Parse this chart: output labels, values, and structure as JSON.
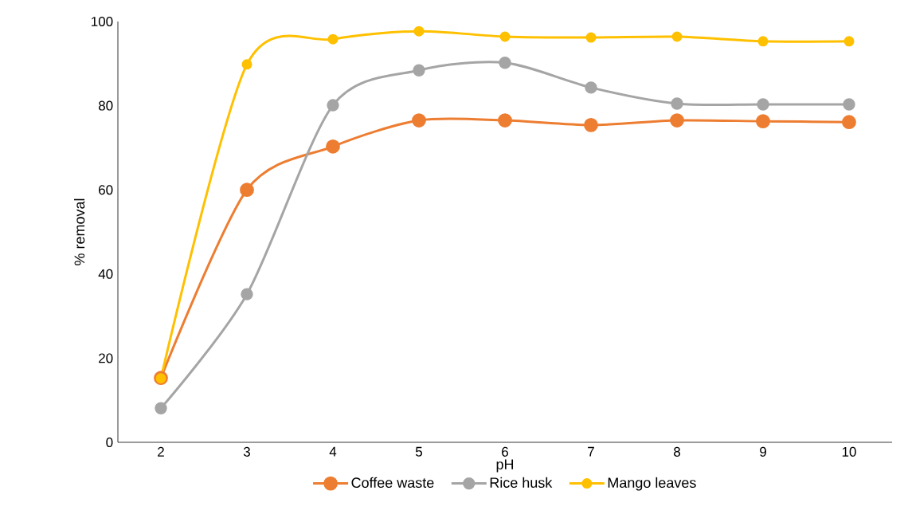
{
  "chart_data": {
    "type": "line",
    "xlabel": "pH",
    "ylabel": "% removal",
    "x": [
      2,
      3,
      4,
      5,
      6,
      7,
      8,
      9,
      10
    ],
    "series": [
      {
        "name": "Coffee waste",
        "color": "#ed7d31",
        "values": [
          15.3,
          60.0,
          70.3,
          76.5,
          76.5,
          75.4,
          76.5,
          76.3,
          76.1
        ]
      },
      {
        "name": "Rice husk",
        "color": "#a5a5a5",
        "values": [
          8.1,
          35.2,
          80.1,
          88.4,
          90.2,
          84.3,
          80.5,
          80.3,
          80.3
        ]
      },
      {
        "name": "Mango leaves",
        "color": "#ffc000",
        "values": [
          15.2,
          89.8,
          95.8,
          97.7,
          96.4,
          96.2,
          96.4,
          95.3,
          95.3
        ]
      }
    ],
    "xlim": [
      1.5,
      10.5
    ],
    "xticks": [
      2,
      3,
      4,
      5,
      6,
      7,
      8,
      9,
      10
    ],
    "ylim": [
      0,
      100
    ],
    "yticks": [
      0,
      20,
      40,
      60,
      80,
      100
    ],
    "grid": false,
    "legend": "bottom",
    "marker": "circle",
    "line_style": "solid"
  }
}
